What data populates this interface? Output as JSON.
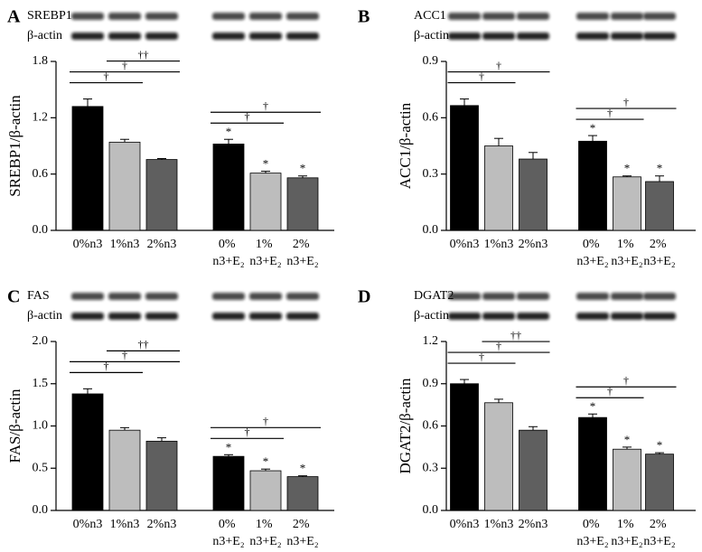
{
  "chart_data": [
    {
      "type": "bar",
      "panel": "A",
      "blot_labels": [
        "SREBP1",
        "β-actin"
      ],
      "y_label": "SREBP1/β-actin",
      "categories": [
        "0%n3",
        "1%n3",
        "2%n3",
        "0% n3+E₂",
        "1% n3+E₂",
        "2% n3+E₂"
      ],
      "values": [
        1.32,
        0.94,
        0.755,
        0.92,
        0.61,
        0.56
      ],
      "errors": [
        0.08,
        0.03,
        0.01,
        0.05,
        0.02,
        0.02
      ],
      "colors": [
        "#000000",
        "#bdbdbd",
        "#5f5f5f",
        "#000000",
        "#bdbdbd",
        "#5f5f5f"
      ],
      "ylim": [
        0,
        1.8
      ],
      "yticks": [
        {
          "value": 0,
          "label": "0.0"
        },
        0.6,
        1.2,
        1.8
      ],
      "markers": [
        null,
        null,
        null,
        "*",
        "*",
        "*"
      ],
      "comparisons": [
        {
          "from": 0,
          "to": 1,
          "label": "†"
        },
        {
          "from": 0,
          "to": 2,
          "label": "†"
        },
        {
          "from": 1,
          "to": 2,
          "label": "††"
        },
        {
          "from": 3,
          "to": 4,
          "label": "†"
        },
        {
          "from": 3,
          "to": 5,
          "label": "†"
        }
      ]
    },
    {
      "type": "bar",
      "panel": "B",
      "blot_labels": [
        "ACC1",
        "β-actin"
      ],
      "y_label": "ACC1/β-actin",
      "categories": [
        "0%n3",
        "1%n3",
        "2%n3",
        "0% n3+E₂",
        "1% n3+E₂",
        "2% n3+E₂"
      ],
      "values": [
        0.665,
        0.45,
        0.38,
        0.475,
        0.285,
        0.26
      ],
      "errors": [
        0.035,
        0.04,
        0.035,
        0.03,
        0.005,
        0.03
      ],
      "colors": [
        "#000000",
        "#bdbdbd",
        "#5f5f5f",
        "#000000",
        "#bdbdbd",
        "#5f5f5f"
      ],
      "ylim": [
        0,
        0.9
      ],
      "yticks": [
        {
          "value": 0,
          "label": "0.0"
        },
        0.3,
        0.6,
        0.9
      ],
      "markers": [
        null,
        null,
        null,
        "*",
        "*",
        "*"
      ],
      "comparisons": [
        {
          "from": 0,
          "to": 1,
          "label": "†"
        },
        {
          "from": 0,
          "to": 2,
          "label": "†"
        },
        {
          "from": 3,
          "to": 4,
          "label": "†"
        },
        {
          "from": 3,
          "to": 5,
          "label": "†"
        }
      ]
    },
    {
      "type": "bar",
      "panel": "C",
      "blot_labels": [
        "FAS",
        "β-actin"
      ],
      "y_label": "FAS/β-actin",
      "categories": [
        "0%n3",
        "1%n3",
        "2%n3",
        "0% n3+E₂",
        "1% n3+E₂",
        "2% n3+E₂"
      ],
      "values": [
        1.38,
        0.95,
        0.82,
        0.64,
        0.47,
        0.4
      ],
      "errors": [
        0.06,
        0.03,
        0.04,
        0.02,
        0.02,
        0.01
      ],
      "colors": [
        "#000000",
        "#bdbdbd",
        "#5f5f5f",
        "#000000",
        "#bdbdbd",
        "#5f5f5f"
      ],
      "ylim": [
        0,
        2.0
      ],
      "yticks": [
        {
          "value": 0,
          "label": "0.0"
        },
        0.5,
        {
          "value": 1,
          "label": "1.0"
        },
        1.5,
        {
          "value": 2,
          "label": "2.0"
        }
      ],
      "markers": [
        null,
        null,
        null,
        "*",
        "*",
        "*"
      ],
      "comparisons": [
        {
          "from": 0,
          "to": 1,
          "label": "†"
        },
        {
          "from": 0,
          "to": 2,
          "label": "†"
        },
        {
          "from": 1,
          "to": 2,
          "label": "††"
        },
        {
          "from": 3,
          "to": 4,
          "label": "†"
        },
        {
          "from": 3,
          "to": 5,
          "label": "†"
        }
      ]
    },
    {
      "type": "bar",
      "panel": "D",
      "blot_labels": [
        "DGAT2",
        "β-actin"
      ],
      "y_label": "DGAT2/β-actin",
      "categories": [
        "0%n3",
        "1%n3",
        "2%n3",
        "0% n3+E₂",
        "1% n3+E₂",
        "2% n3+E₂"
      ],
      "values": [
        0.9,
        0.765,
        0.57,
        0.66,
        0.435,
        0.4
      ],
      "errors": [
        0.03,
        0.025,
        0.025,
        0.025,
        0.015,
        0.01
      ],
      "colors": [
        "#000000",
        "#bdbdbd",
        "#5f5f5f",
        "#000000",
        "#bdbdbd",
        "#5f5f5f"
      ],
      "ylim": [
        0,
        1.2
      ],
      "yticks": [
        {
          "value": 0,
          "label": "0.0"
        },
        0.3,
        0.6,
        0.9,
        1.2
      ],
      "markers": [
        null,
        null,
        null,
        "*",
        "*",
        "*"
      ],
      "comparisons": [
        {
          "from": 0,
          "to": 1,
          "label": "†"
        },
        {
          "from": 0,
          "to": 2,
          "label": "†"
        },
        {
          "from": 1,
          "to": 2,
          "label": "††"
        },
        {
          "from": 3,
          "to": 4,
          "label": "†"
        },
        {
          "from": 3,
          "to": 5,
          "label": "†"
        }
      ]
    }
  ]
}
